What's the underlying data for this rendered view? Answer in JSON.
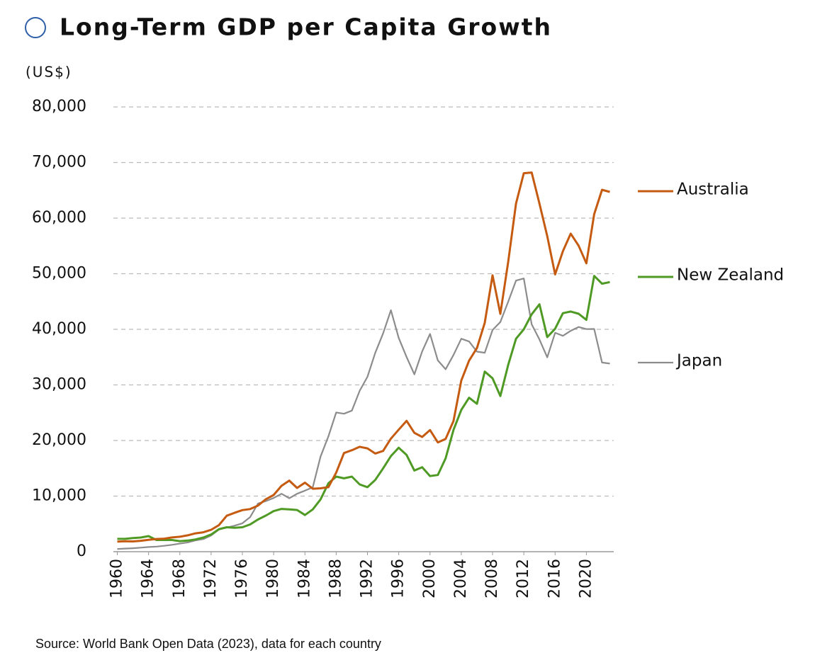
{
  "chart_data": {
    "type": "line",
    "title": "Long-Term GDP per Capita Growth",
    "y_label": "(US$)",
    "source": "Source: World Bank Open Data (2023), data for each country",
    "x": [
      1960,
      1961,
      1962,
      1963,
      1964,
      1965,
      1966,
      1967,
      1968,
      1969,
      1970,
      1971,
      1972,
      1973,
      1974,
      1975,
      1976,
      1977,
      1978,
      1979,
      1980,
      1981,
      1982,
      1983,
      1984,
      1985,
      1986,
      1987,
      1988,
      1989,
      1990,
      1991,
      1992,
      1993,
      1994,
      1995,
      1996,
      1997,
      1998,
      1999,
      2000,
      2001,
      2002,
      2003,
      2004,
      2005,
      2006,
      2007,
      2008,
      2009,
      2010,
      2011,
      2012,
      2013,
      2014,
      2015,
      2016,
      2017,
      2018,
      2019,
      2020,
      2021,
      2022,
      2023
    ],
    "series": [
      {
        "name": "Australia",
        "color": "#c55a11",
        "values": [
          1807,
          1875,
          1852,
          1965,
          2131,
          2279,
          2350,
          2565,
          2685,
          2944,
          3305,
          3494,
          3934,
          4776,
          6470,
          6998,
          7476,
          7667,
          8298,
          9443,
          10195,
          11844,
          12789,
          11467,
          12425,
          11323,
          11398,
          11599,
          14223,
          17750,
          18250,
          18864,
          18592,
          17654,
          18128,
          20343,
          21946,
          23541,
          21371,
          20640,
          21869,
          19661,
          20291,
          23506,
          30787,
          34375,
          36637,
          41170,
          49702,
          42773,
          52134,
          62608,
          68079,
          68209,
          62615,
          56757,
          49876,
          54066,
          57207,
          55057,
          51868,
          60697,
          65100,
          64712
        ]
      },
      {
        "name": "New Zealand",
        "color": "#4e9a24",
        "values": [
          2300,
          2300,
          2450,
          2550,
          2800,
          2100,
          2100,
          2100,
          1900,
          2000,
          2200,
          2550,
          3100,
          4050,
          4400,
          4300,
          4400,
          4900,
          5800,
          6500,
          7300,
          7700,
          7600,
          7500,
          6600,
          7600,
          9400,
          12300,
          13500,
          13200,
          13500,
          12100,
          11600,
          12900,
          15000,
          17200,
          18700,
          17400,
          14600,
          15200,
          13600,
          13800,
          16800,
          21900,
          25500,
          27700,
          26600,
          32400,
          31200,
          28000,
          33600,
          38300,
          40000,
          42700,
          44500,
          38600,
          40100,
          42900,
          43200,
          42800,
          41700,
          49600,
          48200,
          48500
        ]
      },
      {
        "name": "Japan",
        "color": "#8c8c8c",
        "values": [
          480,
          560,
          630,
          720,
          840,
          920,
          1060,
          1230,
          1450,
          1670,
          2040,
          2270,
          2920,
          3990,
          4350,
          4670,
          5110,
          6230,
          8680,
          9100,
          9660,
          10420,
          9620,
          10420,
          10980,
          11580,
          17110,
          20750,
          25050,
          24810,
          25370,
          28930,
          31460,
          35770,
          39270,
          43440,
          38440,
          35020,
          31900,
          36030,
          39170,
          34410,
          32820,
          35390,
          38300,
          37810,
          35990,
          35780,
          39870,
          41310,
          44970,
          48760,
          49150,
          40900,
          38160,
          34960,
          39380,
          38830,
          39730,
          40420,
          40040,
          40060,
          34020,
          33830
        ]
      }
    ],
    "xlim": [
      1959.5,
      2023.5
    ],
    "xticks": [
      1960,
      1964,
      1968,
      1972,
      1976,
      1980,
      1984,
      1988,
      1992,
      1996,
      2000,
      2004,
      2008,
      2012,
      2016,
      2020
    ],
    "ylim": [
      0,
      80000
    ],
    "yticks": [
      0,
      {
        "value": 10000,
        "label": "10,000"
      },
      {
        "value": 20000,
        "label": "20,000"
      },
      {
        "value": 30000,
        "label": "30,000"
      },
      {
        "value": 40000,
        "label": "40,000"
      },
      {
        "value": 50000,
        "label": "50,000"
      },
      {
        "value": 60000,
        "label": "60,000"
      },
      {
        "value": 70000,
        "label": "70,000"
      },
      {
        "value": 80000,
        "label": "80,000"
      }
    ],
    "grid": true,
    "legend": "right"
  }
}
